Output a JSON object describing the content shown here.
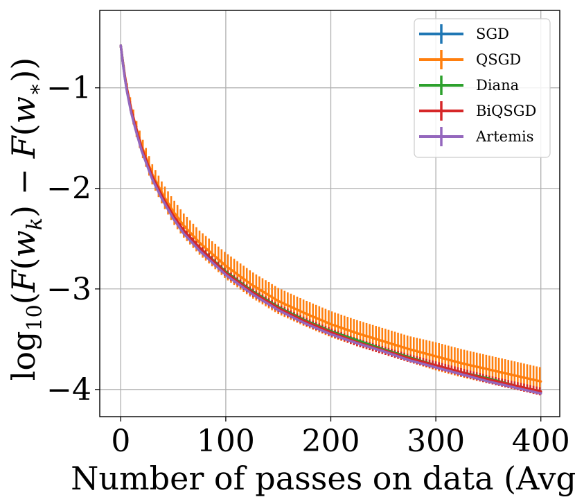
{
  "chart_data": {
    "type": "line",
    "title": "",
    "xlabel": "Number of passes on data (Avg)",
    "ylabel": "log10(F(w_k) - F(w_*))",
    "xlim": [
      -20,
      418
    ],
    "ylim": [
      -4.27,
      -0.23
    ],
    "xticks": [
      0,
      100,
      200,
      300,
      400
    ],
    "yticks": [
      -1,
      -2,
      -3,
      -4
    ],
    "xtick_labels": [
      "0",
      "100",
      "200",
      "300",
      "400"
    ],
    "ytick_labels": [
      "−1",
      "−2",
      "−3",
      "−4"
    ],
    "grid": true,
    "legend_position": "top-right",
    "error_bars": true,
    "x": [
      0,
      2,
      5,
      10,
      15,
      20,
      30,
      40,
      50,
      60,
      75,
      100,
      125,
      150,
      175,
      200,
      225,
      250,
      275,
      300,
      325,
      350,
      375,
      400
    ],
    "series": [
      {
        "name": "SGD",
        "color": "#1f77b4",
        "values": [
          -0.58,
          -0.75,
          -0.98,
          -1.24,
          -1.44,
          -1.62,
          -1.9,
          -2.11,
          -2.29,
          -2.44,
          -2.61,
          -2.85,
          -3.04,
          -3.2,
          -3.33,
          -3.44,
          -3.53,
          -3.61,
          -3.7,
          -3.77,
          -3.84,
          -3.91,
          -3.97,
          -4.03
        ],
        "error": [
          0.01,
          0.01,
          0.01,
          0.01,
          0.01,
          0.01,
          0.01,
          0.01,
          0.01,
          0.01,
          0.01,
          0.01,
          0.01,
          0.01,
          0.01,
          0.01,
          0.01,
          0.01,
          0.01,
          0.01,
          0.01,
          0.01,
          0.01,
          0.01
        ]
      },
      {
        "name": "QSGD",
        "color": "#ff7f0e",
        "values": [
          -0.58,
          -0.74,
          -0.96,
          -1.21,
          -1.41,
          -1.58,
          -1.86,
          -2.06,
          -2.23,
          -2.37,
          -2.54,
          -2.77,
          -2.96,
          -3.12,
          -3.24,
          -3.35,
          -3.44,
          -3.52,
          -3.6,
          -3.67,
          -3.74,
          -3.8,
          -3.86,
          -3.92
        ],
        "error": [
          0.01,
          0.03,
          0.05,
          0.07,
          0.08,
          0.09,
          0.1,
          0.11,
          0.12,
          0.12,
          0.12,
          0.13,
          0.13,
          0.13,
          0.13,
          0.13,
          0.13,
          0.13,
          0.13,
          0.14,
          0.14,
          0.14,
          0.14,
          0.14
        ]
      },
      {
        "name": "Diana",
        "color": "#2ca02c",
        "values": [
          -0.58,
          -0.75,
          -0.98,
          -1.23,
          -1.43,
          -1.61,
          -1.89,
          -2.1,
          -2.28,
          -2.42,
          -2.59,
          -2.83,
          -3.02,
          -3.18,
          -3.31,
          -3.42,
          -3.51,
          -3.6,
          -3.68,
          -3.76,
          -3.83,
          -3.89,
          -3.96,
          -4.02
        ],
        "error": [
          0.01,
          0.01,
          0.01,
          0.01,
          0.01,
          0.01,
          0.01,
          0.01,
          0.01,
          0.01,
          0.01,
          0.01,
          0.01,
          0.01,
          0.01,
          0.01,
          0.01,
          0.01,
          0.01,
          0.01,
          0.01,
          0.01,
          0.01,
          0.01
        ]
      },
      {
        "name": "BiQSGD",
        "color": "#d62728",
        "values": [
          -0.58,
          -0.75,
          -0.97,
          -1.22,
          -1.42,
          -1.6,
          -1.88,
          -2.09,
          -2.27,
          -2.42,
          -2.59,
          -2.84,
          -3.03,
          -3.19,
          -3.32,
          -3.43,
          -3.53,
          -3.61,
          -3.69,
          -3.76,
          -3.83,
          -3.9,
          -3.96,
          -4.02
        ],
        "error": [
          0.01,
          0.02,
          0.03,
          0.04,
          0.04,
          0.04,
          0.04,
          0.04,
          0.04,
          0.04,
          0.04,
          0.04,
          0.04,
          0.04,
          0.04,
          0.04,
          0.04,
          0.04,
          0.04,
          0.04,
          0.04,
          0.04,
          0.04,
          0.04
        ]
      },
      {
        "name": "Artemis",
        "color": "#9467bd",
        "values": [
          -0.58,
          -0.76,
          -0.99,
          -1.25,
          -1.45,
          -1.63,
          -1.91,
          -2.12,
          -2.3,
          -2.45,
          -2.62,
          -2.86,
          -3.05,
          -3.21,
          -3.34,
          -3.45,
          -3.54,
          -3.62,
          -3.71,
          -3.78,
          -3.85,
          -3.92,
          -3.98,
          -4.04
        ],
        "error": [
          0.01,
          0.01,
          0.01,
          0.01,
          0.01,
          0.01,
          0.01,
          0.01,
          0.01,
          0.01,
          0.01,
          0.01,
          0.01,
          0.01,
          0.01,
          0.01,
          0.01,
          0.01,
          0.01,
          0.01,
          0.01,
          0.01,
          0.01,
          0.01
        ]
      }
    ]
  }
}
